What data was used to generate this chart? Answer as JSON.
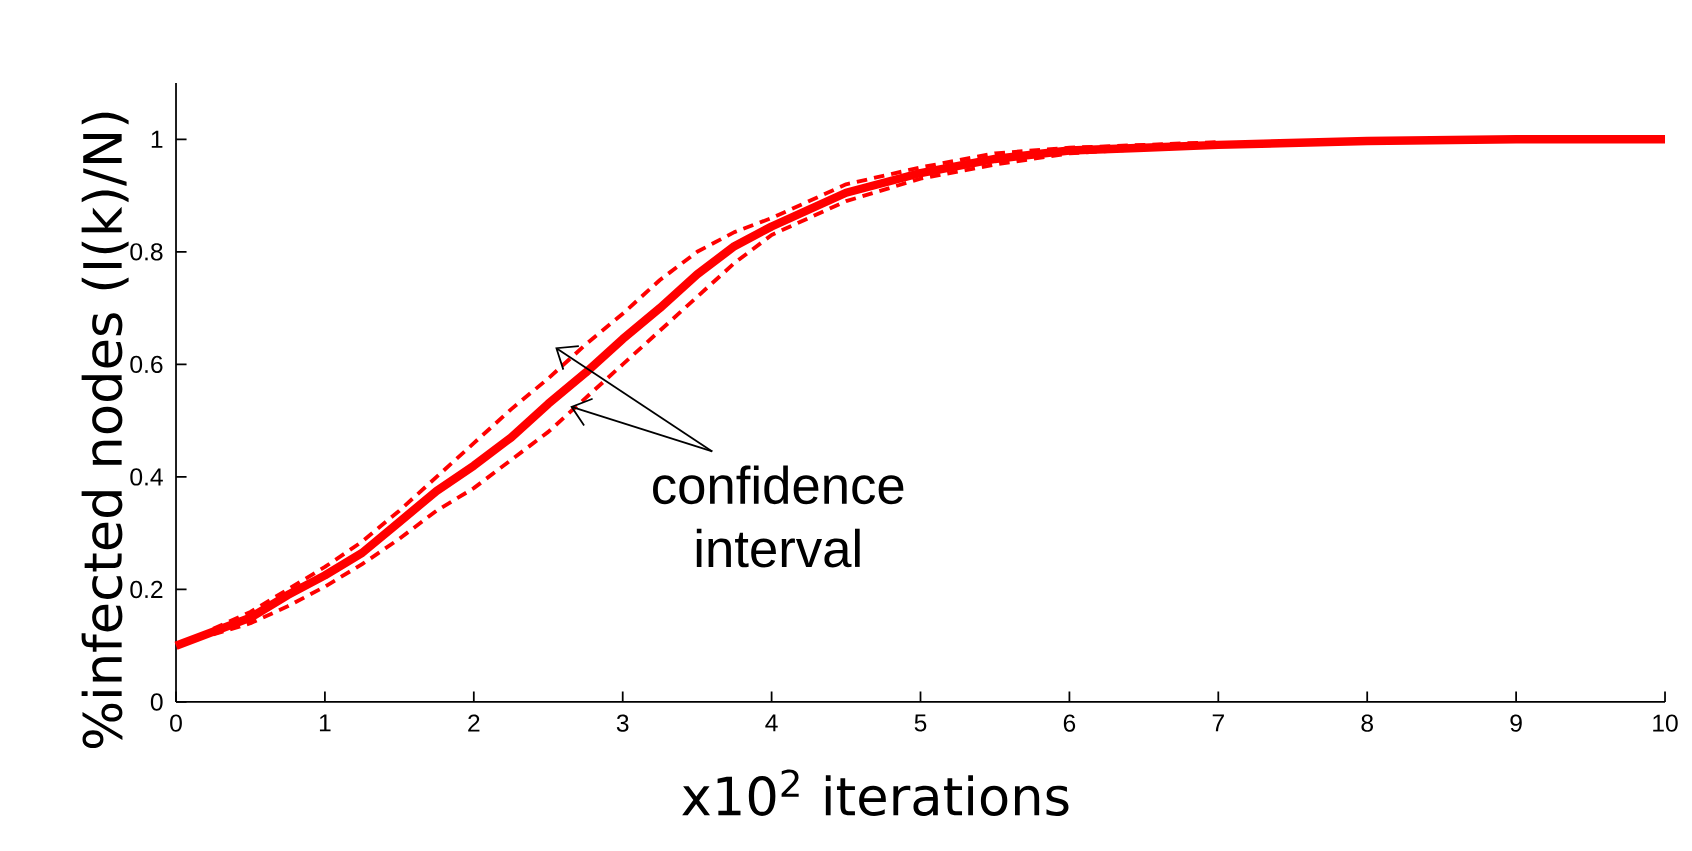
{
  "chart_data": {
    "type": "line",
    "xlabel": "x10$^{2}$ iterations",
    "ylabel": "%infected nodes (I(k)/N)",
    "x": [
      0,
      0.25,
      0.5,
      0.75,
      1,
      1.25,
      1.5,
      1.75,
      2,
      2.25,
      2.5,
      2.75,
      3,
      3.25,
      3.5,
      3.75,
      4,
      4.5,
      5,
      5.5,
      6,
      6.5,
      7,
      8,
      9,
      10
    ],
    "series": [
      {
        "color": "#ff0000",
        "line_style": "solid",
        "values": [
          0.1,
          0.125,
          0.15,
          0.19,
          0.225,
          0.265,
          0.32,
          0.375,
          0.42,
          0.47,
          0.53,
          0.585,
          0.645,
          0.7,
          0.76,
          0.81,
          0.845,
          0.905,
          0.94,
          0.965,
          0.98,
          0.985,
          0.99,
          0.997,
          1.0,
          1.0
        ]
      },
      {
        "color": "#ff0000",
        "line_style": "dashed",
        "values": [
          null,
          0.13,
          0.16,
          0.2,
          0.24,
          0.285,
          0.34,
          0.4,
          0.46,
          0.52,
          0.575,
          0.635,
          0.69,
          0.75,
          0.8,
          0.835,
          0.86,
          0.92,
          0.95,
          0.975,
          0.985,
          0.99,
          0.995,
          null,
          null,
          null
        ]
      },
      {
        "color": "#ff0000",
        "line_style": "dashed",
        "values": [
          null,
          0.12,
          0.14,
          0.17,
          0.205,
          0.245,
          0.29,
          0.34,
          0.38,
          0.43,
          0.48,
          0.54,
          0.6,
          0.66,
          0.72,
          0.78,
          0.83,
          0.89,
          0.93,
          0.955,
          0.975,
          0.983,
          0.99,
          null,
          null,
          null
        ]
      }
    ],
    "xlim": [
      0,
      10
    ],
    "ylim": [
      0,
      1.1
    ],
    "xticks": [
      0,
      1,
      2,
      3,
      4,
      5,
      6,
      7,
      8,
      9,
      10
    ],
    "yticks": [
      0,
      0.2,
      0.4,
      0.6,
      0.8,
      1
    ],
    "annotations": [
      {
        "text": "confidence interval",
        "x": 2.5,
        "y": 0.575
      }
    ]
  }
}
